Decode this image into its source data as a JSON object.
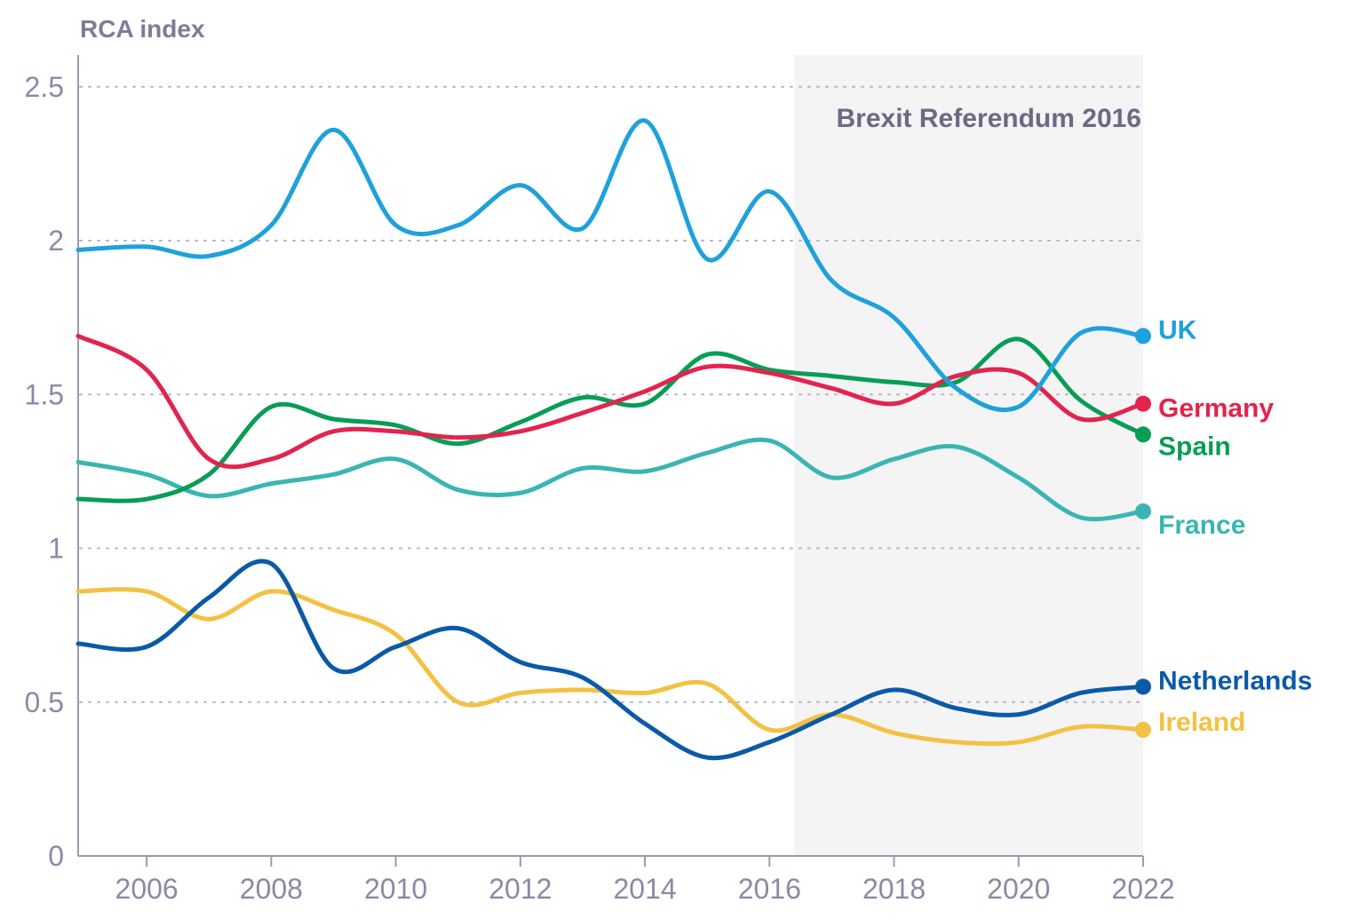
{
  "chart_data": {
    "type": "line",
    "ylabel": "RCA index",
    "ylim": [
      0,
      2.6
    ],
    "yticks": [
      0,
      0.5,
      1,
      1.5,
      2,
      2.5
    ],
    "ytick_labels": [
      "0",
      "0.5",
      "1",
      "1.5",
      "2",
      "2.5"
    ],
    "xlim": [
      2004.9,
      2022
    ],
    "xticks": [
      2006,
      2008,
      2010,
      2012,
      2014,
      2016,
      2018,
      2020,
      2022
    ],
    "xtick_labels": [
      "2006",
      "2008",
      "2010",
      "2012",
      "2014",
      "2016",
      "2018",
      "2020",
      "2022"
    ],
    "grid": "horizontal dotted",
    "shaded_region": {
      "x_start": 2016.4,
      "x_end": 2022,
      "label": "Brexit Referendum 2016",
      "color": "#f4f4f5"
    },
    "x": [
      2005,
      2006,
      2007,
      2008,
      2009,
      2010,
      2011,
      2012,
      2013,
      2014,
      2015,
      2016,
      2017,
      2018,
      2019,
      2020,
      2021,
      2022
    ],
    "series": [
      {
        "name": "UK",
        "color": "#1ea1dc",
        "values": [
          1.97,
          1.98,
          1.95,
          2.05,
          2.36,
          2.05,
          2.05,
          2.18,
          2.04,
          2.39,
          1.94,
          2.16,
          1.87,
          1.75,
          1.52,
          1.46,
          1.7,
          1.69
        ]
      },
      {
        "name": "Germany",
        "color": "#e2244e",
        "values": [
          1.69,
          1.58,
          1.29,
          1.29,
          1.38,
          1.38,
          1.36,
          1.38,
          1.44,
          1.51,
          1.59,
          1.57,
          1.52,
          1.47,
          1.56,
          1.57,
          1.42,
          1.47
        ]
      },
      {
        "name": "Spain",
        "color": "#089d55",
        "values": [
          1.16,
          1.16,
          1.24,
          1.46,
          1.42,
          1.4,
          1.34,
          1.41,
          1.49,
          1.47,
          1.63,
          1.58,
          1.56,
          1.54,
          1.54,
          1.68,
          1.48,
          1.37
        ]
      },
      {
        "name": "France",
        "color": "#3bb5b3",
        "values": [
          1.28,
          1.24,
          1.17,
          1.21,
          1.24,
          1.29,
          1.19,
          1.18,
          1.26,
          1.25,
          1.31,
          1.35,
          1.23,
          1.29,
          1.33,
          1.23,
          1.1,
          1.12
        ]
      },
      {
        "name": "Netherlands",
        "color": "#0a5aa7",
        "values": [
          0.69,
          0.68,
          0.84,
          0.95,
          0.61,
          0.68,
          0.74,
          0.63,
          0.58,
          0.43,
          0.32,
          0.37,
          0.46,
          0.54,
          0.48,
          0.46,
          0.53,
          0.55
        ]
      },
      {
        "name": "Ireland",
        "color": "#f3c143",
        "values": [
          0.86,
          0.86,
          0.77,
          0.86,
          0.8,
          0.72,
          0.5,
          0.53,
          0.54,
          0.53,
          0.56,
          0.41,
          0.46,
          0.4,
          0.37,
          0.37,
          0.42,
          0.41
        ]
      }
    ]
  }
}
